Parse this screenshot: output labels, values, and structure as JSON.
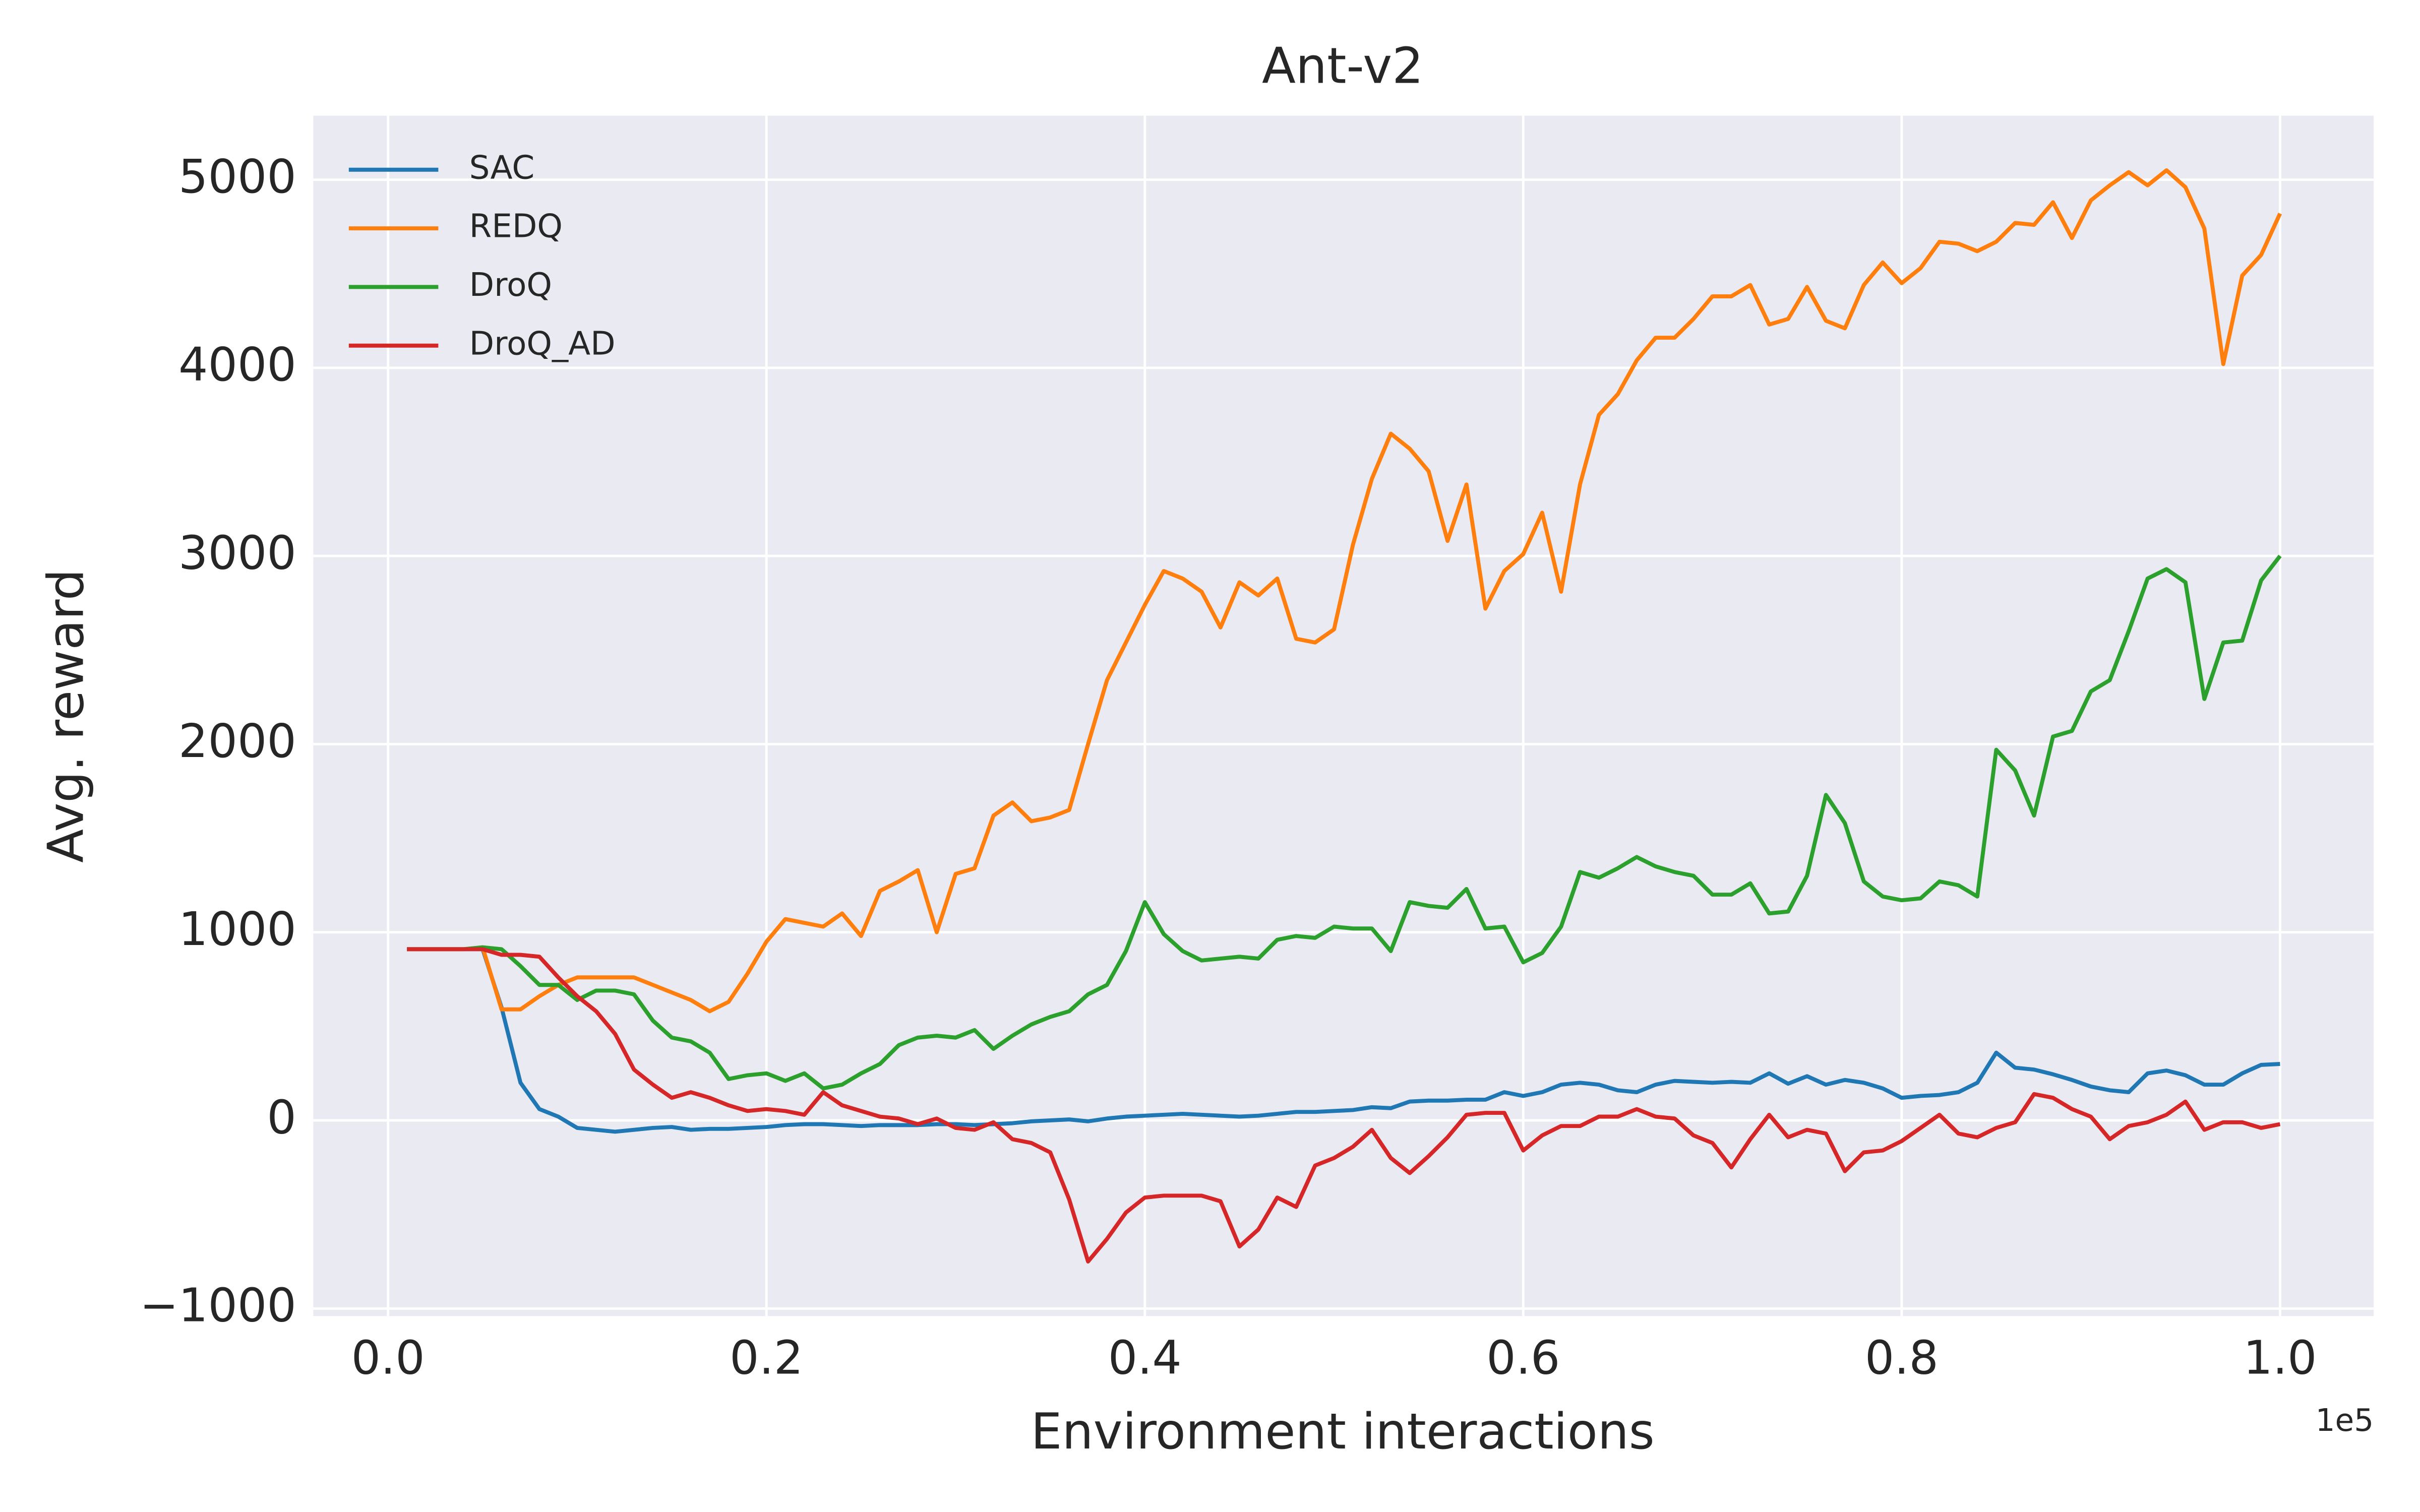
{
  "chart_data": {
    "type": "line",
    "title": "Ant-v2",
    "x_label": "Environment interactions",
    "y_label": "Avg. reward",
    "x_offset_label": "1e5",
    "x": [
      0.01,
      0.02,
      0.03,
      0.04,
      0.05,
      0.06,
      0.07,
      0.08,
      0.09,
      0.1,
      0.11,
      0.12,
      0.13,
      0.14,
      0.15,
      0.16,
      0.17,
      0.18,
      0.19,
      0.2,
      0.21,
      0.22,
      0.23,
      0.24,
      0.25,
      0.26,
      0.27,
      0.28,
      0.29,
      0.3,
      0.31,
      0.32,
      0.33,
      0.34,
      0.35,
      0.36,
      0.37,
      0.38,
      0.39,
      0.4,
      0.41,
      0.42,
      0.43,
      0.44,
      0.45,
      0.46,
      0.47,
      0.48,
      0.49,
      0.5,
      0.51,
      0.52,
      0.53,
      0.54,
      0.55,
      0.56,
      0.57,
      0.58,
      0.59,
      0.6,
      0.61,
      0.62,
      0.63,
      0.64,
      0.65,
      0.66,
      0.67,
      0.68,
      0.69,
      0.7,
      0.71,
      0.72,
      0.73,
      0.74,
      0.75,
      0.76,
      0.77,
      0.78,
      0.79,
      0.8,
      0.81,
      0.82,
      0.83,
      0.84,
      0.85,
      0.86,
      0.87,
      0.88,
      0.89,
      0.9,
      0.91,
      0.92,
      0.93,
      0.94,
      0.95,
      0.96,
      0.97,
      0.98,
      0.99,
      1.0
    ],
    "series": [
      {
        "name": "SAC",
        "color": "#1f77b4",
        "values": [
          910,
          910,
          910,
          910,
          910,
          600,
          200,
          60,
          20,
          -40,
          -50,
          -60,
          -50,
          -40,
          -35,
          -50,
          -45,
          -45,
          -40,
          -35,
          -25,
          -20,
          -20,
          -25,
          -30,
          -25,
          -25,
          -25,
          -20,
          -20,
          -25,
          -20,
          -15,
          -5,
          0,
          5,
          -5,
          10,
          20,
          25,
          30,
          35,
          30,
          25,
          20,
          25,
          35,
          45,
          45,
          50,
          55,
          70,
          65,
          100,
          105,
          105,
          110,
          110,
          150,
          130,
          150,
          190,
          200,
          190,
          160,
          150,
          190,
          210,
          205,
          200,
          205,
          200,
          250,
          195,
          235,
          190,
          215,
          200,
          170,
          120,
          130,
          135,
          150,
          200,
          360,
          280,
          270,
          245,
          215,
          180,
          160,
          150,
          250,
          265,
          240,
          190,
          190,
          250,
          295,
          300
        ]
      },
      {
        "name": "REDQ",
        "color": "#ff7f0e",
        "values": [
          910,
          910,
          910,
          910,
          920,
          590,
          590,
          660,
          720,
          760,
          760,
          760,
          760,
          720,
          680,
          640,
          580,
          630,
          780,
          950,
          1070,
          1050,
          1030,
          1100,
          980,
          1220,
          1270,
          1330,
          1000,
          1310,
          1340,
          1620,
          1690,
          1590,
          1610,
          1650,
          2000,
          2340,
          2540,
          2740,
          2920,
          2880,
          2810,
          2620,
          2860,
          2790,
          2880,
          2560,
          2540,
          2610,
          3060,
          3410,
          3650,
          3570,
          3450,
          3080,
          3380,
          2720,
          2920,
          3010,
          3230,
          2810,
          3380,
          3750,
          3860,
          4040,
          4160,
          4160,
          4260,
          4380,
          4380,
          4440,
          4230,
          4260,
          4430,
          4250,
          4210,
          4440,
          4560,
          4450,
          4530,
          4670,
          4660,
          4620,
          4670,
          4770,
          4760,
          4880,
          4690,
          4890,
          4970,
          5040,
          4970,
          5050,
          4960,
          4740,
          4020,
          4490,
          4600,
          4820
        ]
      },
      {
        "name": "DroQ",
        "color": "#2ca02c",
        "values": [
          910,
          910,
          910,
          910,
          920,
          910,
          820,
          720,
          720,
          640,
          690,
          690,
          670,
          530,
          440,
          420,
          360,
          220,
          240,
          250,
          210,
          250,
          170,
          190,
          250,
          300,
          400,
          440,
          450,
          440,
          480,
          380,
          450,
          510,
          550,
          580,
          670,
          720,
          900,
          1160,
          990,
          900,
          850,
          860,
          870,
          860,
          960,
          980,
          970,
          1030,
          1020,
          1020,
          900,
          1160,
          1140,
          1130,
          1230,
          1020,
          1030,
          840,
          890,
          1030,
          1320,
          1290,
          1340,
          1400,
          1350,
          1320,
          1300,
          1200,
          1200,
          1260,
          1100,
          1110,
          1300,
          1730,
          1580,
          1270,
          1190,
          1170,
          1180,
          1270,
          1250,
          1190,
          1970,
          1860,
          1620,
          2040,
          2070,
          2280,
          2340,
          2600,
          2880,
          2930,
          2860,
          2240,
          2540,
          2550,
          2870,
          3000
        ]
      },
      {
        "name": "DroQ_AD",
        "color": "#d62728",
        "values": [
          910,
          910,
          910,
          910,
          910,
          880,
          880,
          870,
          760,
          660,
          580,
          460,
          270,
          190,
          120,
          150,
          120,
          80,
          50,
          60,
          50,
          30,
          150,
          80,
          50,
          20,
          10,
          -20,
          10,
          -40,
          -50,
          -10,
          -100,
          -120,
          -170,
          -420,
          -750,
          -630,
          -490,
          -410,
          -400,
          -400,
          -400,
          -430,
          -670,
          -580,
          -410,
          -460,
          -240,
          -200,
          -140,
          -50,
          -200,
          -280,
          -190,
          -90,
          30,
          40,
          40,
          -160,
          -80,
          -30,
          -30,
          20,
          20,
          60,
          20,
          10,
          -80,
          -120,
          -250,
          -100,
          30,
          -90,
          -50,
          -70,
          -270,
          -170,
          -160,
          -110,
          -40,
          30,
          -70,
          -90,
          -40,
          -10,
          140,
          120,
          60,
          20,
          -100,
          -30,
          -10,
          30,
          100,
          -50,
          -10,
          -10,
          -40,
          -20
        ]
      }
    ],
    "xlim": [
      -0.0395,
      1.0495
    ],
    "ylim": [
      -1040,
      5340
    ],
    "xticks": [
      {
        "value": 0,
        "label": "0.0"
      },
      0.2,
      0.4,
      0.6,
      0.8,
      {
        "value": 1,
        "label": "1.0"
      }
    ],
    "yticks": [
      {
        "value": -1000,
        "label": "−1000"
      },
      0,
      1000,
      2000,
      3000,
      4000,
      5000
    ],
    "grid": true,
    "legend": "upper left"
  }
}
